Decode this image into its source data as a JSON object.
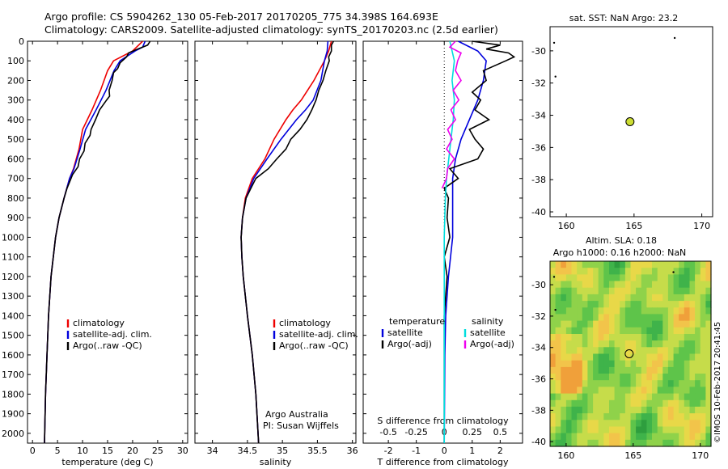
{
  "header": {
    "line1": "Argo profile: CS 5904262_130 05-Feb-2017 20170205_775 34.398S 164.693E",
    "line2": "Climatology: CARS2009. Satellite-adjusted climatology: synTS_20170203.nc (2.5d earlier)"
  },
  "credit": "©IMOS 10-Feb-2017 20:41:45",
  "colors": {
    "climatology": "#ee0000",
    "satellite": "#0000dd",
    "argo": "#000000",
    "sal_satellite": "#00dddd",
    "sal_argo": "#ee00ee"
  },
  "chart_data": [
    {
      "type": "line",
      "panel": "temperature",
      "xlabel": "temperature (deg C)",
      "xlim": [
        -1,
        31
      ],
      "ylim": [
        2050,
        0
      ],
      "xticks": [
        0,
        5,
        10,
        15,
        20,
        25,
        30
      ],
      "yticks": [
        0,
        100,
        200,
        300,
        400,
        500,
        600,
        700,
        800,
        900,
        1000,
        1100,
        1200,
        1300,
        1400,
        1500,
        1600,
        1700,
        1800,
        1900,
        2000
      ],
      "legend": [
        "climatology",
        "satellite-adj. clim.",
        "Argo(..raw -QC)"
      ],
      "series": [
        {
          "name": "climatology",
          "color": "#ee0000",
          "depth": [
            0,
            50,
            100,
            150,
            250,
            350,
            450,
            550,
            650,
            700,
            800,
            900,
            1000,
            1200,
            1400,
            1600,
            1800,
            2050
          ],
          "values": [
            22.0,
            20.0,
            16.2,
            15.0,
            13.6,
            11.9,
            10.0,
            9.3,
            8.2,
            7.4,
            6.3,
            5.3,
            4.6,
            3.7,
            3.2,
            2.9,
            2.6,
            2.4
          ]
        },
        {
          "name": "satellite-adj. clim.",
          "color": "#0000dd",
          "depth": [
            0,
            30,
            50,
            100,
            150,
            250,
            350,
            450,
            550,
            650,
            700,
            800,
            900,
            1000,
            1200,
            1400,
            1600,
            1800,
            2050
          ],
          "values": [
            22.5,
            22.0,
            20.5,
            17.5,
            16.3,
            14.7,
            12.7,
            10.6,
            9.5,
            8.3,
            7.4,
            6.3,
            5.3,
            4.6,
            3.7,
            3.2,
            2.9,
            2.6,
            2.4
          ]
        },
        {
          "name": "Argo(..raw -QC)",
          "color": "#000000",
          "depth": [
            0,
            20,
            40,
            60,
            80,
            110,
            140,
            160,
            200,
            250,
            280,
            300,
            350,
            400,
            450,
            480,
            520,
            560,
            600,
            640,
            680,
            700,
            750,
            800,
            900,
            1000,
            1200,
            1400,
            1600,
            1800,
            2050
          ],
          "values": [
            23.5,
            23.0,
            21.0,
            19.2,
            18.8,
            17.5,
            17.0,
            16.2,
            15.9,
            15.3,
            15.4,
            14.8,
            13.4,
            12.6,
            11.7,
            11.5,
            10.5,
            10.3,
            9.4,
            9.1,
            8.0,
            7.7,
            6.9,
            6.3,
            5.3,
            4.6,
            3.7,
            3.2,
            2.9,
            2.6,
            2.4
          ]
        }
      ]
    },
    {
      "type": "line",
      "panel": "salinity",
      "xlabel": "salinity",
      "xlim": [
        33.75,
        36.05
      ],
      "ylim": [
        2050,
        0
      ],
      "xticks": [
        34,
        34.5,
        35,
        35.5,
        36
      ],
      "legend": [
        "climatology",
        "satellite-adj. clim.",
        "Argo(..raw -QC)"
      ],
      "annotations": [
        "Argo Australia",
        "PI: Susan Wijffels"
      ],
      "series": [
        {
          "name": "climatology",
          "color": "#ee0000",
          "depth": [
            0,
            50,
            100,
            200,
            300,
            350,
            400,
            500,
            600,
            700,
            800,
            900,
            1000,
            1100,
            1200,
            1400,
            1600,
            1800,
            2050
          ],
          "values": [
            35.7,
            35.66,
            35.6,
            35.45,
            35.27,
            35.15,
            35.05,
            34.88,
            34.75,
            34.57,
            34.47,
            34.43,
            34.41,
            34.42,
            34.44,
            34.5,
            34.57,
            34.62,
            34.66
          ]
        },
        {
          "name": "satellite-adj. clim.",
          "color": "#0000dd",
          "depth": [
            0,
            50,
            100,
            200,
            300,
            350,
            400,
            500,
            600,
            700,
            800,
            900,
            1000,
            1100,
            1200,
            1400,
            1600,
            1800,
            2050
          ],
          "values": [
            35.65,
            35.64,
            35.6,
            35.55,
            35.44,
            35.33,
            35.2,
            34.98,
            34.78,
            34.59,
            34.48,
            34.43,
            34.41,
            34.42,
            34.44,
            34.5,
            34.57,
            34.62,
            34.66
          ]
        },
        {
          "name": "Argo(..raw -QC)",
          "color": "#000000",
          "depth": [
            0,
            20,
            50,
            80,
            100,
            150,
            200,
            250,
            300,
            350,
            400,
            450,
            500,
            550,
            600,
            650,
            700,
            750,
            800,
            900,
            1000,
            1100,
            1200,
            1400,
            1600,
            1800,
            2050
          ],
          "values": [
            35.73,
            35.7,
            35.7,
            35.66,
            35.67,
            35.62,
            35.58,
            35.52,
            35.48,
            35.42,
            35.35,
            35.25,
            35.12,
            35.05,
            34.92,
            34.8,
            34.62,
            34.55,
            34.48,
            34.43,
            34.41,
            34.42,
            34.44,
            34.5,
            34.57,
            34.62,
            34.66
          ]
        }
      ]
    },
    {
      "type": "line",
      "panel": "differences",
      "xlabel": "T difference from climatology",
      "xlabel_top": "S difference from climatology",
      "xlim": [
        -2.9,
        2.8
      ],
      "ylim": [
        2050,
        0
      ],
      "xticks": [
        -2,
        -1,
        0,
        1,
        2
      ],
      "xticks_s": [
        "-0.5",
        "-0.25",
        "0",
        "0.25",
        "0.5"
      ],
      "legend_left_title": "temperature",
      "legend_right_title": "salinity",
      "legend": [
        "satellite",
        "Argo(-adj)",
        "satellite",
        "Argo(-adj)"
      ],
      "series": [
        {
          "name": "temperature satellite",
          "color": "#0000dd",
          "depth": [
            0,
            50,
            100,
            200,
            300,
            400,
            500,
            600,
            700,
            800,
            1000,
            1200,
            1400,
            1600,
            1800,
            2050
          ],
          "values": [
            0.5,
            1.2,
            1.5,
            1.4,
            1.2,
            0.9,
            0.6,
            0.4,
            0.3,
            0.3,
            0.3,
            0.15,
            0.05,
            0.02,
            0.01,
            0.0
          ]
        },
        {
          "name": "temperature Argo(-adj)",
          "color": "#000000",
          "depth": [
            0,
            20,
            40,
            60,
            80,
            100,
            150,
            200,
            260,
            300,
            350,
            400,
            450,
            500,
            550,
            600,
            650,
            700,
            750,
            800,
            900,
            1000,
            1100,
            1200,
            1400,
            1600,
            1800,
            2050
          ],
          "values": [
            1.0,
            2.0,
            1.5,
            2.3,
            2.5,
            2.2,
            1.4,
            1.5,
            1.0,
            1.3,
            1.1,
            1.6,
            0.9,
            1.1,
            1.4,
            1.2,
            0.2,
            0.5,
            0.0,
            0.15,
            0.1,
            0.2,
            0.0,
            0.1,
            0.0,
            0.0,
            0.0,
            0.0
          ]
        },
        {
          "name": "salinity satellite",
          "color": "#00dddd",
          "depth": [
            0,
            100,
            200,
            300,
            400,
            500,
            600,
            700,
            800,
            1000,
            1200,
            1400,
            1600,
            1800,
            2050
          ],
          "values": [
            0.05,
            0.09,
            0.07,
            0.09,
            0.08,
            0.06,
            0.04,
            0.02,
            0.01,
            0.0,
            0.0,
            0.0,
            0.0,
            0.0,
            0.0
          ]
        },
        {
          "name": "salinity Argo(-adj)",
          "color": "#ee00ee",
          "depth": [
            0,
            30,
            60,
            100,
            150,
            200,
            250,
            300,
            350,
            400,
            450,
            500,
            550,
            600,
            650,
            700,
            750
          ],
          "values": [
            0.1,
            0.05,
            0.15,
            0.12,
            0.1,
            0.15,
            0.08,
            0.13,
            0.06,
            0.1,
            0.03,
            0.07,
            0.02,
            0.09,
            0.03,
            0.02,
            -0.02
          ]
        }
      ]
    },
    {
      "type": "scatter",
      "panel": "sst_map",
      "title": "sat. SST: NaN Argo: 23.2",
      "xlim": [
        158.8,
        170.8
      ],
      "ylim": [
        -40.3,
        -28.5
      ],
      "xticks": [
        160,
        165,
        170
      ],
      "yticks": [
        -30,
        -32,
        -34,
        -36,
        -38,
        -40
      ],
      "points": [
        {
          "lon": 164.7,
          "lat": -34.4,
          "label": "Argo"
        }
      ]
    },
    {
      "type": "heatmap",
      "panel": "sla_map",
      "title_lines": [
        "Altim. SLA: 0.18",
        "Argo h1000: 0.16 h2000: NaN"
      ],
      "xlim": [
        158.8,
        170.8
      ],
      "ylim": [
        -40.3,
        -28.5
      ],
      "xticks": [
        160,
        165,
        170
      ],
      "yticks": [
        -30,
        -32,
        -34,
        -36,
        -38,
        -40
      ],
      "points": [
        {
          "lon": 164.7,
          "lat": -34.4,
          "label": "Argo"
        }
      ]
    }
  ]
}
